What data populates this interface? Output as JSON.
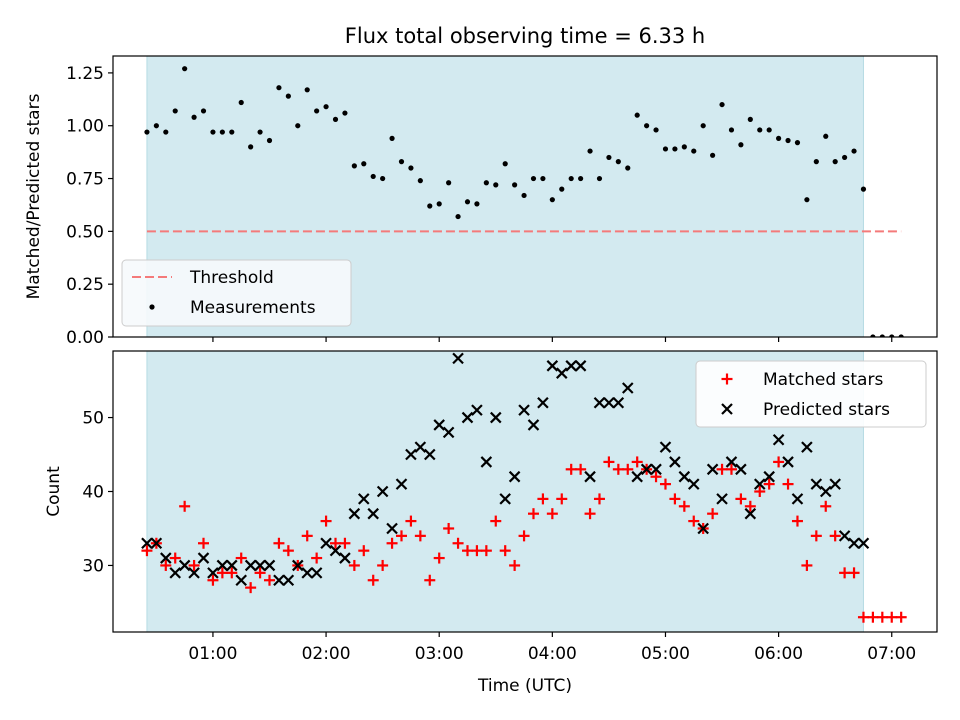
{
  "title": "Flux total observing time = 6.33 h",
  "chart_data": [
    {
      "type": "scatter",
      "panel": "top",
      "ylabel": "Matched/Predicted stars",
      "xlim": [
        "00:07",
        "07:24"
      ],
      "ylim": [
        0,
        1.33
      ],
      "yticks": [
        0.0,
        0.25,
        0.5,
        0.75,
        1.0,
        1.25
      ],
      "ytick_labels": [
        "0.00",
        "0.25",
        "0.50",
        "0.75",
        "1.00",
        "1.25"
      ],
      "shaded_span": [
        "00:25",
        "06:45"
      ],
      "legend_position": "lower-left",
      "threshold": {
        "name": "Threshold",
        "value": 0.5,
        "x": [
          "00:25",
          "07:05"
        ]
      },
      "series": [
        {
          "name": "Measurements",
          "points": [
            [
              "00:25",
              0.97
            ],
            [
              "00:30",
              1.0
            ],
            [
              "00:35",
              0.97
            ],
            [
              "00:40",
              1.07
            ],
            [
              "00:45",
              1.27
            ],
            [
              "00:50",
              1.04
            ],
            [
              "00:55",
              1.07
            ],
            [
              "01:00",
              0.97
            ],
            [
              "01:05",
              0.97
            ],
            [
              "01:10",
              0.97
            ],
            [
              "01:15",
              1.11
            ],
            [
              "01:20",
              0.9
            ],
            [
              "01:25",
              0.97
            ],
            [
              "01:30",
              0.93
            ],
            [
              "01:35",
              1.18
            ],
            [
              "01:40",
              1.14
            ],
            [
              "01:45",
              1.0
            ],
            [
              "01:50",
              1.17
            ],
            [
              "01:55",
              1.07
            ],
            [
              "02:00",
              1.09
            ],
            [
              "02:05",
              1.03
            ],
            [
              "02:10",
              1.06
            ],
            [
              "02:15",
              0.81
            ],
            [
              "02:20",
              0.82
            ],
            [
              "02:25",
              0.76
            ],
            [
              "02:30",
              0.75
            ],
            [
              "02:35",
              0.94
            ],
            [
              "02:40",
              0.83
            ],
            [
              "02:45",
              0.8
            ],
            [
              "02:50",
              0.74
            ],
            [
              "02:55",
              0.62
            ],
            [
              "03:00",
              0.63
            ],
            [
              "03:05",
              0.73
            ],
            [
              "03:10",
              0.57
            ],
            [
              "03:15",
              0.64
            ],
            [
              "03:20",
              0.63
            ],
            [
              "03:25",
              0.73
            ],
            [
              "03:30",
              0.72
            ],
            [
              "03:35",
              0.82
            ],
            [
              "03:40",
              0.72
            ],
            [
              "03:45",
              0.67
            ],
            [
              "03:50",
              0.75
            ],
            [
              "03:55",
              0.75
            ],
            [
              "04:00",
              0.65
            ],
            [
              "04:05",
              0.7
            ],
            [
              "04:10",
              0.75
            ],
            [
              "04:15",
              0.75
            ],
            [
              "04:20",
              0.88
            ],
            [
              "04:25",
              0.75
            ],
            [
              "04:30",
              0.85
            ],
            [
              "04:35",
              0.83
            ],
            [
              "04:40",
              0.8
            ],
            [
              "04:45",
              1.05
            ],
            [
              "04:50",
              1.0
            ],
            [
              "04:55",
              0.98
            ],
            [
              "05:00",
              0.89
            ],
            [
              "05:05",
              0.89
            ],
            [
              "05:10",
              0.9
            ],
            [
              "05:15",
              0.88
            ],
            [
              "05:20",
              1.0
            ],
            [
              "05:25",
              0.86
            ],
            [
              "05:30",
              1.1
            ],
            [
              "05:35",
              0.98
            ],
            [
              "05:40",
              0.91
            ],
            [
              "05:45",
              1.03
            ],
            [
              "05:50",
              0.98
            ],
            [
              "05:55",
              0.98
            ],
            [
              "06:00",
              0.94
            ],
            [
              "06:05",
              0.93
            ],
            [
              "06:10",
              0.92
            ],
            [
              "06:15",
              0.65
            ],
            [
              "06:20",
              0.83
            ],
            [
              "06:25",
              0.95
            ],
            [
              "06:30",
              0.83
            ],
            [
              "06:35",
              0.85
            ],
            [
              "06:40",
              0.88
            ],
            [
              "06:45",
              0.7
            ],
            [
              "06:50",
              0.0
            ],
            [
              "06:55",
              0.0
            ],
            [
              "07:00",
              0.0
            ],
            [
              "07:05",
              0.0
            ]
          ]
        }
      ]
    },
    {
      "type": "scatter",
      "panel": "bottom",
      "xlabel": "Time (UTC)",
      "ylabel": "Count",
      "xlim": [
        "00:07",
        "07:24"
      ],
      "ylim": [
        21,
        59
      ],
      "xticks": [
        "01:00",
        "02:00",
        "03:00",
        "04:00",
        "05:00",
        "06:00",
        "07:00"
      ],
      "yticks": [
        30,
        40,
        50
      ],
      "ytick_labels": [
        "30",
        "40",
        "50"
      ],
      "shaded_span": [
        "00:25",
        "06:45"
      ],
      "legend_position": "upper-right",
      "series": [
        {
          "name": "Matched stars",
          "color": "#ff0000",
          "marker": "plus",
          "points": [
            [
              "00:25",
              32
            ],
            [
              "00:30",
              33
            ],
            [
              "00:35",
              30
            ],
            [
              "00:40",
              31
            ],
            [
              "00:45",
              38
            ],
            [
              "00:50",
              30
            ],
            [
              "00:55",
              33
            ],
            [
              "01:00",
              28
            ],
            [
              "01:05",
              29
            ],
            [
              "01:10",
              29
            ],
            [
              "01:15",
              31
            ],
            [
              "01:20",
              27
            ],
            [
              "01:25",
              29
            ],
            [
              "01:30",
              28
            ],
            [
              "01:35",
              33
            ],
            [
              "01:40",
              32
            ],
            [
              "01:45",
              30
            ],
            [
              "01:50",
              34
            ],
            [
              "01:55",
              31
            ],
            [
              "02:00",
              36
            ],
            [
              "02:05",
              33
            ],
            [
              "02:10",
              33
            ],
            [
              "02:15",
              30
            ],
            [
              "02:20",
              32
            ],
            [
              "02:25",
              28
            ],
            [
              "02:30",
              30
            ],
            [
              "02:35",
              33
            ],
            [
              "02:40",
              34
            ],
            [
              "02:45",
              36
            ],
            [
              "02:50",
              34
            ],
            [
              "02:55",
              28
            ],
            [
              "03:00",
              31
            ],
            [
              "03:05",
              35
            ],
            [
              "03:10",
              33
            ],
            [
              "03:15",
              32
            ],
            [
              "03:20",
              32
            ],
            [
              "03:25",
              32
            ],
            [
              "03:30",
              36
            ],
            [
              "03:35",
              32
            ],
            [
              "03:40",
              30
            ],
            [
              "03:45",
              34
            ],
            [
              "03:50",
              37
            ],
            [
              "03:55",
              39
            ],
            [
              "04:00",
              37
            ],
            [
              "04:05",
              39
            ],
            [
              "04:10",
              43
            ],
            [
              "04:15",
              43
            ],
            [
              "04:20",
              37
            ],
            [
              "04:25",
              39
            ],
            [
              "04:30",
              44
            ],
            [
              "04:35",
              43
            ],
            [
              "04:40",
              43
            ],
            [
              "04:45",
              44
            ],
            [
              "04:50",
              43
            ],
            [
              "04:55",
              42
            ],
            [
              "05:00",
              41
            ],
            [
              "05:05",
              39
            ],
            [
              "05:10",
              38
            ],
            [
              "05:15",
              36
            ],
            [
              "05:20",
              35
            ],
            [
              "05:25",
              37
            ],
            [
              "05:30",
              43
            ],
            [
              "05:35",
              43
            ],
            [
              "05:40",
              39
            ],
            [
              "05:45",
              38
            ],
            [
              "05:50",
              40
            ],
            [
              "05:55",
              41
            ],
            [
              "06:00",
              44
            ],
            [
              "06:05",
              41
            ],
            [
              "06:10",
              36
            ],
            [
              "06:15",
              30
            ],
            [
              "06:20",
              34
            ],
            [
              "06:25",
              38
            ],
            [
              "06:30",
              34
            ],
            [
              "06:35",
              29
            ],
            [
              "06:40",
              29
            ],
            [
              "06:45",
              23
            ],
            [
              "06:50",
              23
            ],
            [
              "06:55",
              23
            ],
            [
              "07:00",
              23
            ],
            [
              "07:05",
              23
            ]
          ]
        },
        {
          "name": "Predicted stars",
          "color": "#000000",
          "marker": "x",
          "points": [
            [
              "00:25",
              33
            ],
            [
              "00:30",
              33
            ],
            [
              "00:35",
              31
            ],
            [
              "00:40",
              29
            ],
            [
              "00:45",
              30
            ],
            [
              "00:50",
              29
            ],
            [
              "00:55",
              31
            ],
            [
              "01:00",
              29
            ],
            [
              "01:05",
              30
            ],
            [
              "01:10",
              30
            ],
            [
              "01:15",
              28
            ],
            [
              "01:20",
              30
            ],
            [
              "01:25",
              30
            ],
            [
              "01:30",
              30
            ],
            [
              "01:35",
              28
            ],
            [
              "01:40",
              28
            ],
            [
              "01:45",
              30
            ],
            [
              "01:50",
              29
            ],
            [
              "01:55",
              29
            ],
            [
              "02:00",
              33
            ],
            [
              "02:05",
              32
            ],
            [
              "02:10",
              31
            ],
            [
              "02:15",
              37
            ],
            [
              "02:20",
              39
            ],
            [
              "02:25",
              37
            ],
            [
              "02:30",
              40
            ],
            [
              "02:35",
              35
            ],
            [
              "02:40",
              41
            ],
            [
              "02:45",
              45
            ],
            [
              "02:50",
              46
            ],
            [
              "02:55",
              45
            ],
            [
              "03:00",
              49
            ],
            [
              "03:05",
              48
            ],
            [
              "03:10",
              58
            ],
            [
              "03:15",
              50
            ],
            [
              "03:20",
              51
            ],
            [
              "03:25",
              44
            ],
            [
              "03:30",
              50
            ],
            [
              "03:35",
              39
            ],
            [
              "03:40",
              42
            ],
            [
              "03:45",
              51
            ],
            [
              "03:50",
              49
            ],
            [
              "03:55",
              52
            ],
            [
              "04:00",
              57
            ],
            [
              "04:05",
              56
            ],
            [
              "04:10",
              57
            ],
            [
              "04:15",
              57
            ],
            [
              "04:20",
              42
            ],
            [
              "04:25",
              52
            ],
            [
              "04:30",
              52
            ],
            [
              "04:35",
              52
            ],
            [
              "04:40",
              54
            ],
            [
              "04:45",
              42
            ],
            [
              "04:50",
              43
            ],
            [
              "04:55",
              43
            ],
            [
              "05:00",
              46
            ],
            [
              "05:05",
              44
            ],
            [
              "05:10",
              42
            ],
            [
              "05:15",
              41
            ],
            [
              "05:20",
              35
            ],
            [
              "05:25",
              43
            ],
            [
              "05:30",
              39
            ],
            [
              "05:35",
              44
            ],
            [
              "05:40",
              43
            ],
            [
              "05:45",
              37
            ],
            [
              "05:50",
              41
            ],
            [
              "05:55",
              42
            ],
            [
              "06:00",
              47
            ],
            [
              "06:05",
              44
            ],
            [
              "06:10",
              39
            ],
            [
              "06:15",
              46
            ],
            [
              "06:20",
              41
            ],
            [
              "06:25",
              40
            ],
            [
              "06:30",
              41
            ],
            [
              "06:35",
              34
            ],
            [
              "06:40",
              33
            ],
            [
              "06:45",
              33
            ]
          ]
        }
      ]
    }
  ]
}
